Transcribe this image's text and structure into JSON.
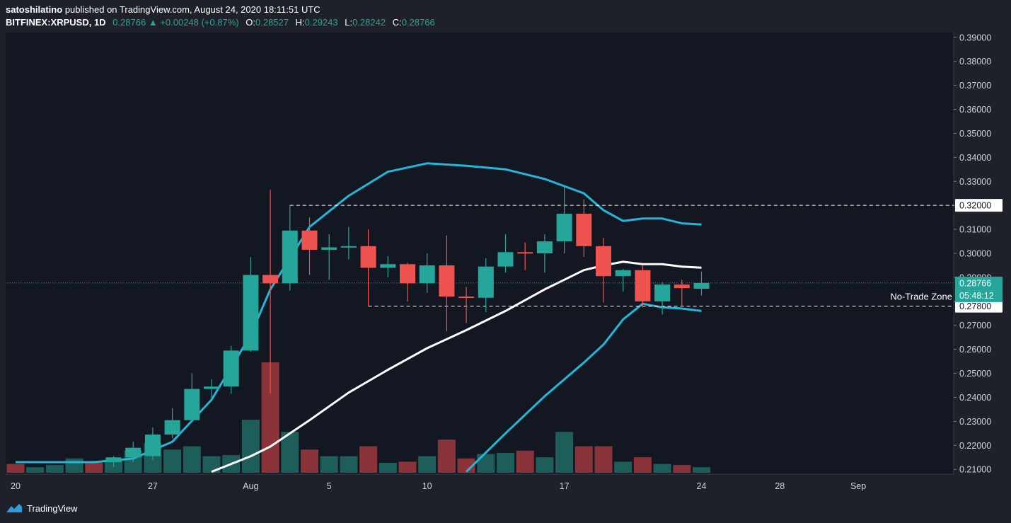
{
  "header": {
    "author": "satoshilatino",
    "published_text": "published on TradingView.com, August 24, 2020 18:11:51 UTC"
  },
  "ticker": {
    "symbol": "BITFINEX:XRPUSD, 1D",
    "last": "0.28766",
    "change": "+0.00248 (+0.87%)",
    "open_label": "O:",
    "open": "0.28527",
    "high_label": "H:",
    "high": "0.29243",
    "low_label": "L:",
    "low": "0.28242",
    "close_label": "C:",
    "close": "0.28766"
  },
  "footer": {
    "brand": "TradingView",
    "logo_icon": "tradingview-logo-icon"
  },
  "colors": {
    "background": "#1e2129",
    "pane": "#131722",
    "up": "#26a69a",
    "down": "#ef5350",
    "vol_up": "#1d5e5b",
    "vol_down": "#8a3338",
    "band": "#24b6d9",
    "basis": "#ffffff"
  },
  "chart_data": {
    "type": "candlestick",
    "y_range": [
      0.208,
      0.392
    ],
    "y_ticks": [
      "0.21000",
      "0.22000",
      "0.23000",
      "0.24000",
      "0.25000",
      "0.26000",
      "0.27000",
      "0.28000",
      "0.29000",
      "0.30000",
      "0.31000",
      "0.32000",
      "0.33000",
      "0.34000",
      "0.35000",
      "0.36000",
      "0.37000",
      "0.38000",
      "0.39000"
    ],
    "x_range": [
      "2020-07-20",
      "2020-09-04"
    ],
    "x_ticks": [
      {
        "date": "2020-07-20",
        "label": "20"
      },
      {
        "date": "2020-07-27",
        "label": "27"
      },
      {
        "date": "2020-08-01",
        "label": "Aug"
      },
      {
        "date": "2020-08-05",
        "label": "5"
      },
      {
        "date": "2020-08-10",
        "label": "10"
      },
      {
        "date": "2020-08-17",
        "label": "17"
      },
      {
        "date": "2020-08-24",
        "label": "24"
      },
      {
        "date": "2020-08-28",
        "label": "28"
      },
      {
        "date": "2020-09-01",
        "label": "Sep"
      }
    ],
    "candles": [
      {
        "date": "2020-07-25",
        "o": 0.213,
        "h": 0.2155,
        "l": 0.211,
        "c": 0.215
      },
      {
        "date": "2020-07-26",
        "o": 0.215,
        "h": 0.2215,
        "l": 0.213,
        "c": 0.219
      },
      {
        "date": "2020-07-27",
        "o": 0.2155,
        "h": 0.2275,
        "l": 0.214,
        "c": 0.2245
      },
      {
        "date": "2020-07-28",
        "o": 0.2245,
        "h": 0.2355,
        "l": 0.223,
        "c": 0.2305
      },
      {
        "date": "2020-07-29",
        "o": 0.2305,
        "h": 0.25,
        "l": 0.2295,
        "c": 0.2435
      },
      {
        "date": "2020-07-30",
        "o": 0.2435,
        "h": 0.2475,
        "l": 0.239,
        "c": 0.2445
      },
      {
        "date": "2020-07-31",
        "o": 0.2445,
        "h": 0.2615,
        "l": 0.2415,
        "c": 0.2595
      },
      {
        "date": "2020-08-01",
        "o": 0.2595,
        "h": 0.2985,
        "l": 0.259,
        "c": 0.291
      },
      {
        "date": "2020-08-02",
        "o": 0.291,
        "h": 0.3265,
        "l": 0.2415,
        "c": 0.2875
      },
      {
        "date": "2020-08-03",
        "o": 0.2875,
        "h": 0.32,
        "l": 0.2845,
        "c": 0.3095
      },
      {
        "date": "2020-08-04",
        "o": 0.3095,
        "h": 0.315,
        "l": 0.291,
        "c": 0.3015
      },
      {
        "date": "2020-08-05",
        "o": 0.3015,
        "h": 0.308,
        "l": 0.289,
        "c": 0.3025
      },
      {
        "date": "2020-08-06",
        "o": 0.3025,
        "h": 0.311,
        "l": 0.2975,
        "c": 0.303
      },
      {
        "date": "2020-08-07",
        "o": 0.303,
        "h": 0.31,
        "l": 0.278,
        "c": 0.294
      },
      {
        "date": "2020-08-08",
        "o": 0.294,
        "h": 0.299,
        "l": 0.29,
        "c": 0.2955
      },
      {
        "date": "2020-08-09",
        "o": 0.2955,
        "h": 0.296,
        "l": 0.28,
        "c": 0.2875
      },
      {
        "date": "2020-08-10",
        "o": 0.2875,
        "h": 0.3,
        "l": 0.2835,
        "c": 0.295
      },
      {
        "date": "2020-08-11",
        "o": 0.295,
        "h": 0.3075,
        "l": 0.2675,
        "c": 0.282
      },
      {
        "date": "2020-08-12",
        "o": 0.282,
        "h": 0.286,
        "l": 0.271,
        "c": 0.2815
      },
      {
        "date": "2020-08-13",
        "o": 0.2815,
        "h": 0.298,
        "l": 0.2755,
        "c": 0.2945
      },
      {
        "date": "2020-08-14",
        "o": 0.2945,
        "h": 0.308,
        "l": 0.292,
        "c": 0.3005
      },
      {
        "date": "2020-08-15",
        "o": 0.3005,
        "h": 0.3045,
        "l": 0.293,
        "c": 0.3
      },
      {
        "date": "2020-08-16",
        "o": 0.3,
        "h": 0.308,
        "l": 0.292,
        "c": 0.305
      },
      {
        "date": "2020-08-17",
        "o": 0.305,
        "h": 0.328,
        "l": 0.3,
        "c": 0.3165
      },
      {
        "date": "2020-08-18",
        "o": 0.3165,
        "h": 0.3225,
        "l": 0.2985,
        "c": 0.303
      },
      {
        "date": "2020-08-19",
        "o": 0.303,
        "h": 0.3065,
        "l": 0.2795,
        "c": 0.2905
      },
      {
        "date": "2020-08-20",
        "o": 0.2905,
        "h": 0.2935,
        "l": 0.284,
        "c": 0.293
      },
      {
        "date": "2020-08-21",
        "o": 0.293,
        "h": 0.295,
        "l": 0.2775,
        "c": 0.28
      },
      {
        "date": "2020-08-22",
        "o": 0.28,
        "h": 0.288,
        "l": 0.2745,
        "c": 0.287
      },
      {
        "date": "2020-08-23",
        "o": 0.287,
        "h": 0.289,
        "l": 0.278,
        "c": 0.2855
      },
      {
        "date": "2020-08-24",
        "o": 0.28527,
        "h": 0.29243,
        "l": 0.28242,
        "c": 0.28766
      }
    ],
    "volume": {
      "max_fraction_ref": 1.0,
      "bars": [
        {
          "date": "2020-07-20",
          "v": 0.08,
          "dir": "down"
        },
        {
          "date": "2020-07-21",
          "v": 0.05,
          "dir": "up"
        },
        {
          "date": "2020-07-22",
          "v": 0.07,
          "dir": "up"
        },
        {
          "date": "2020-07-23",
          "v": 0.13,
          "dir": "up"
        },
        {
          "date": "2020-07-24",
          "v": 0.09,
          "dir": "down"
        },
        {
          "date": "2020-07-25",
          "v": 0.12,
          "dir": "up"
        },
        {
          "date": "2020-07-26",
          "v": 0.2,
          "dir": "up"
        },
        {
          "date": "2020-07-27",
          "v": 0.27,
          "dir": "up"
        },
        {
          "date": "2020-07-28",
          "v": 0.21,
          "dir": "up"
        },
        {
          "date": "2020-07-29",
          "v": 0.24,
          "dir": "up"
        },
        {
          "date": "2020-07-30",
          "v": 0.15,
          "dir": "up"
        },
        {
          "date": "2020-07-31",
          "v": 0.16,
          "dir": "up"
        },
        {
          "date": "2020-08-01",
          "v": 0.48,
          "dir": "up"
        },
        {
          "date": "2020-08-02",
          "v": 1.0,
          "dir": "down"
        },
        {
          "date": "2020-08-03",
          "v": 0.37,
          "dir": "up"
        },
        {
          "date": "2020-08-04",
          "v": 0.21,
          "dir": "down"
        },
        {
          "date": "2020-08-05",
          "v": 0.15,
          "dir": "up"
        },
        {
          "date": "2020-08-06",
          "v": 0.15,
          "dir": "up"
        },
        {
          "date": "2020-08-07",
          "v": 0.24,
          "dir": "down"
        },
        {
          "date": "2020-08-08",
          "v": 0.09,
          "dir": "up"
        },
        {
          "date": "2020-08-09",
          "v": 0.1,
          "dir": "down"
        },
        {
          "date": "2020-08-10",
          "v": 0.15,
          "dir": "up"
        },
        {
          "date": "2020-08-11",
          "v": 0.3,
          "dir": "down"
        },
        {
          "date": "2020-08-12",
          "v": 0.13,
          "dir": "down"
        },
        {
          "date": "2020-08-13",
          "v": 0.17,
          "dir": "up"
        },
        {
          "date": "2020-08-14",
          "v": 0.18,
          "dir": "up"
        },
        {
          "date": "2020-08-15",
          "v": 0.2,
          "dir": "down"
        },
        {
          "date": "2020-08-16",
          "v": 0.14,
          "dir": "up"
        },
        {
          "date": "2020-08-17",
          "v": 0.37,
          "dir": "up"
        },
        {
          "date": "2020-08-18",
          "v": 0.24,
          "dir": "down"
        },
        {
          "date": "2020-08-19",
          "v": 0.24,
          "dir": "down"
        },
        {
          "date": "2020-08-20",
          "v": 0.1,
          "dir": "up"
        },
        {
          "date": "2020-08-21",
          "v": 0.14,
          "dir": "down"
        },
        {
          "date": "2020-08-22",
          "v": 0.08,
          "dir": "up"
        },
        {
          "date": "2020-08-23",
          "v": 0.07,
          "dir": "down"
        },
        {
          "date": "2020-08-24",
          "v": 0.05,
          "dir": "up"
        }
      ]
    },
    "bollinger": {
      "upper": [
        {
          "date": "2020-07-20",
          "v": 0.213
        },
        {
          "date": "2020-07-24",
          "v": 0.213
        },
        {
          "date": "2020-07-26",
          "v": 0.2145
        },
        {
          "date": "2020-07-28",
          "v": 0.2215
        },
        {
          "date": "2020-07-30",
          "v": 0.239
        },
        {
          "date": "2020-08-01",
          "v": 0.266
        },
        {
          "date": "2020-08-02",
          "v": 0.285
        },
        {
          "date": "2020-08-04",
          "v": 0.311
        },
        {
          "date": "2020-08-06",
          "v": 0.324
        },
        {
          "date": "2020-08-08",
          "v": 0.334
        },
        {
          "date": "2020-08-10",
          "v": 0.3375
        },
        {
          "date": "2020-08-12",
          "v": 0.3365
        },
        {
          "date": "2020-08-14",
          "v": 0.335
        },
        {
          "date": "2020-08-16",
          "v": 0.331
        },
        {
          "date": "2020-08-17",
          "v": 0.328
        },
        {
          "date": "2020-08-18",
          "v": 0.325
        },
        {
          "date": "2020-08-19",
          "v": 0.318
        },
        {
          "date": "2020-08-20",
          "v": 0.3135
        },
        {
          "date": "2020-08-21",
          "v": 0.3145
        },
        {
          "date": "2020-08-22",
          "v": 0.3145
        },
        {
          "date": "2020-08-23",
          "v": 0.3125
        },
        {
          "date": "2020-08-24",
          "v": 0.312
        }
      ],
      "basis": [
        {
          "date": "2020-07-30",
          "v": 0.209
        },
        {
          "date": "2020-08-01",
          "v": 0.2155
        },
        {
          "date": "2020-08-02",
          "v": 0.2195
        },
        {
          "date": "2020-08-04",
          "v": 0.2305
        },
        {
          "date": "2020-08-06",
          "v": 0.242
        },
        {
          "date": "2020-08-08",
          "v": 0.2515
        },
        {
          "date": "2020-08-10",
          "v": 0.2605
        },
        {
          "date": "2020-08-12",
          "v": 0.268
        },
        {
          "date": "2020-08-14",
          "v": 0.276
        },
        {
          "date": "2020-08-16",
          "v": 0.285
        },
        {
          "date": "2020-08-17",
          "v": 0.289
        },
        {
          "date": "2020-08-18",
          "v": 0.293
        },
        {
          "date": "2020-08-19",
          "v": 0.295
        },
        {
          "date": "2020-08-20",
          "v": 0.2965
        },
        {
          "date": "2020-08-21",
          "v": 0.2955
        },
        {
          "date": "2020-08-22",
          "v": 0.2955
        },
        {
          "date": "2020-08-23",
          "v": 0.2945
        },
        {
          "date": "2020-08-24",
          "v": 0.294
        }
      ],
      "lower": [
        {
          "date": "2020-08-12",
          "v": 0.209
        },
        {
          "date": "2020-08-14",
          "v": 0.225
        },
        {
          "date": "2020-08-16",
          "v": 0.2405
        },
        {
          "date": "2020-08-18",
          "v": 0.2545
        },
        {
          "date": "2020-08-19",
          "v": 0.262
        },
        {
          "date": "2020-08-20",
          "v": 0.2725
        },
        {
          "date": "2020-08-21",
          "v": 0.279
        },
        {
          "date": "2020-08-22",
          "v": 0.2775
        },
        {
          "date": "2020-08-23",
          "v": 0.277
        },
        {
          "date": "2020-08-24",
          "v": 0.276
        }
      ]
    },
    "levels": [
      {
        "price": 0.32,
        "label": "0.32000",
        "start": "2020-08-03",
        "style": "dashed",
        "color": "#ffffff"
      },
      {
        "price": 0.278,
        "label": "0.27800",
        "start": "2020-08-07",
        "style": "dashed",
        "color": "#ffffff"
      }
    ],
    "annotation": {
      "text": "No-Trade Zone",
      "price": 0.2795
    },
    "last_price": {
      "price": 0.28766,
      "label": "0.28766",
      "countdown": "05:48:12"
    }
  }
}
